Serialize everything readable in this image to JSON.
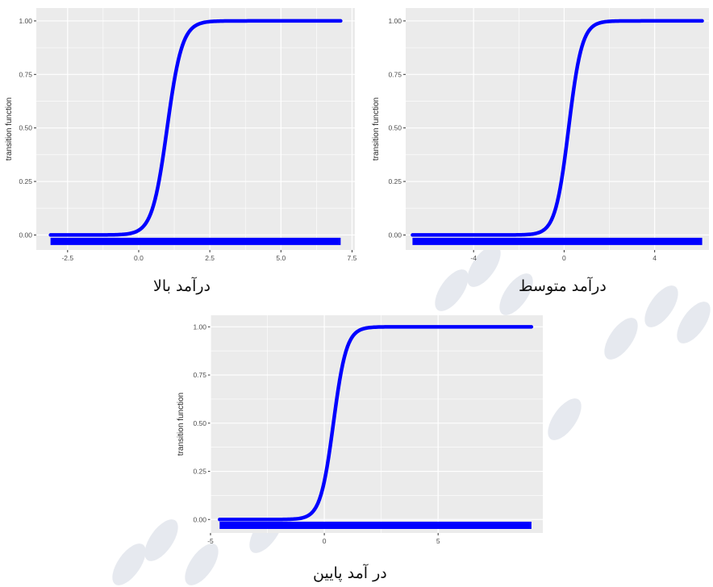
{
  "colors": {
    "panel_bg": "#ebebeb",
    "grid": "#ffffff",
    "series": "#0000ff",
    "watermark": "#e6e9ef"
  },
  "chart_data": [
    {
      "type": "line",
      "caption": "درآمد بالا",
      "ylabel": "transition function",
      "xlim": [
        -3.6,
        7.6
      ],
      "ylim": [
        -0.07,
        1.06
      ],
      "xticks": [
        -2.5,
        0.0,
        2.5,
        5.0,
        7.5
      ],
      "xtick_labels": [
        "-2.5",
        "0.0",
        "2.5",
        "5.0",
        "7.5"
      ],
      "yticks": [
        0.0,
        0.25,
        0.5,
        0.75,
        1.0
      ],
      "ytick_labels": [
        "0.00",
        "0.25",
        "0.50",
        "0.75",
        "1.00"
      ],
      "x_range": [
        -3.1,
        7.1
      ],
      "center": 1.0,
      "slope": 3.8,
      "rug_y": -0.03
    },
    {
      "type": "line",
      "caption": "درآمد متوسط",
      "ylabel": "transition function",
      "xlim": [
        -7.0,
        6.4
      ],
      "ylim": [
        -0.07,
        1.06
      ],
      "xticks": [
        -4,
        0,
        4
      ],
      "xtick_labels": [
        "-4",
        "0",
        "4"
      ],
      "yticks": [
        0.0,
        0.25,
        0.5,
        0.75,
        1.0
      ],
      "ytick_labels": [
        "0.00",
        "0.25",
        "0.50",
        "0.75",
        "1.00"
      ],
      "x_range": [
        -6.7,
        6.1
      ],
      "center": 0.2,
      "slope": 3.4,
      "rug_y": -0.03
    },
    {
      "type": "line",
      "caption": "در آمد پایین",
      "ylabel": "transition function",
      "xlim": [
        -5.0,
        9.6
      ],
      "ylim": [
        -0.07,
        1.06
      ],
      "xticks": [
        -5,
        0,
        5
      ],
      "xtick_labels": [
        "-5",
        "0",
        "5"
      ],
      "yticks": [
        0.0,
        0.25,
        0.5,
        0.75,
        1.0
      ],
      "ytick_labels": [
        "0.00",
        "0.25",
        "0.50",
        "0.75",
        "1.00"
      ],
      "x_range": [
        -4.6,
        9.1
      ],
      "center": 0.4,
      "slope": 3.5,
      "rug_y": -0.03
    }
  ]
}
